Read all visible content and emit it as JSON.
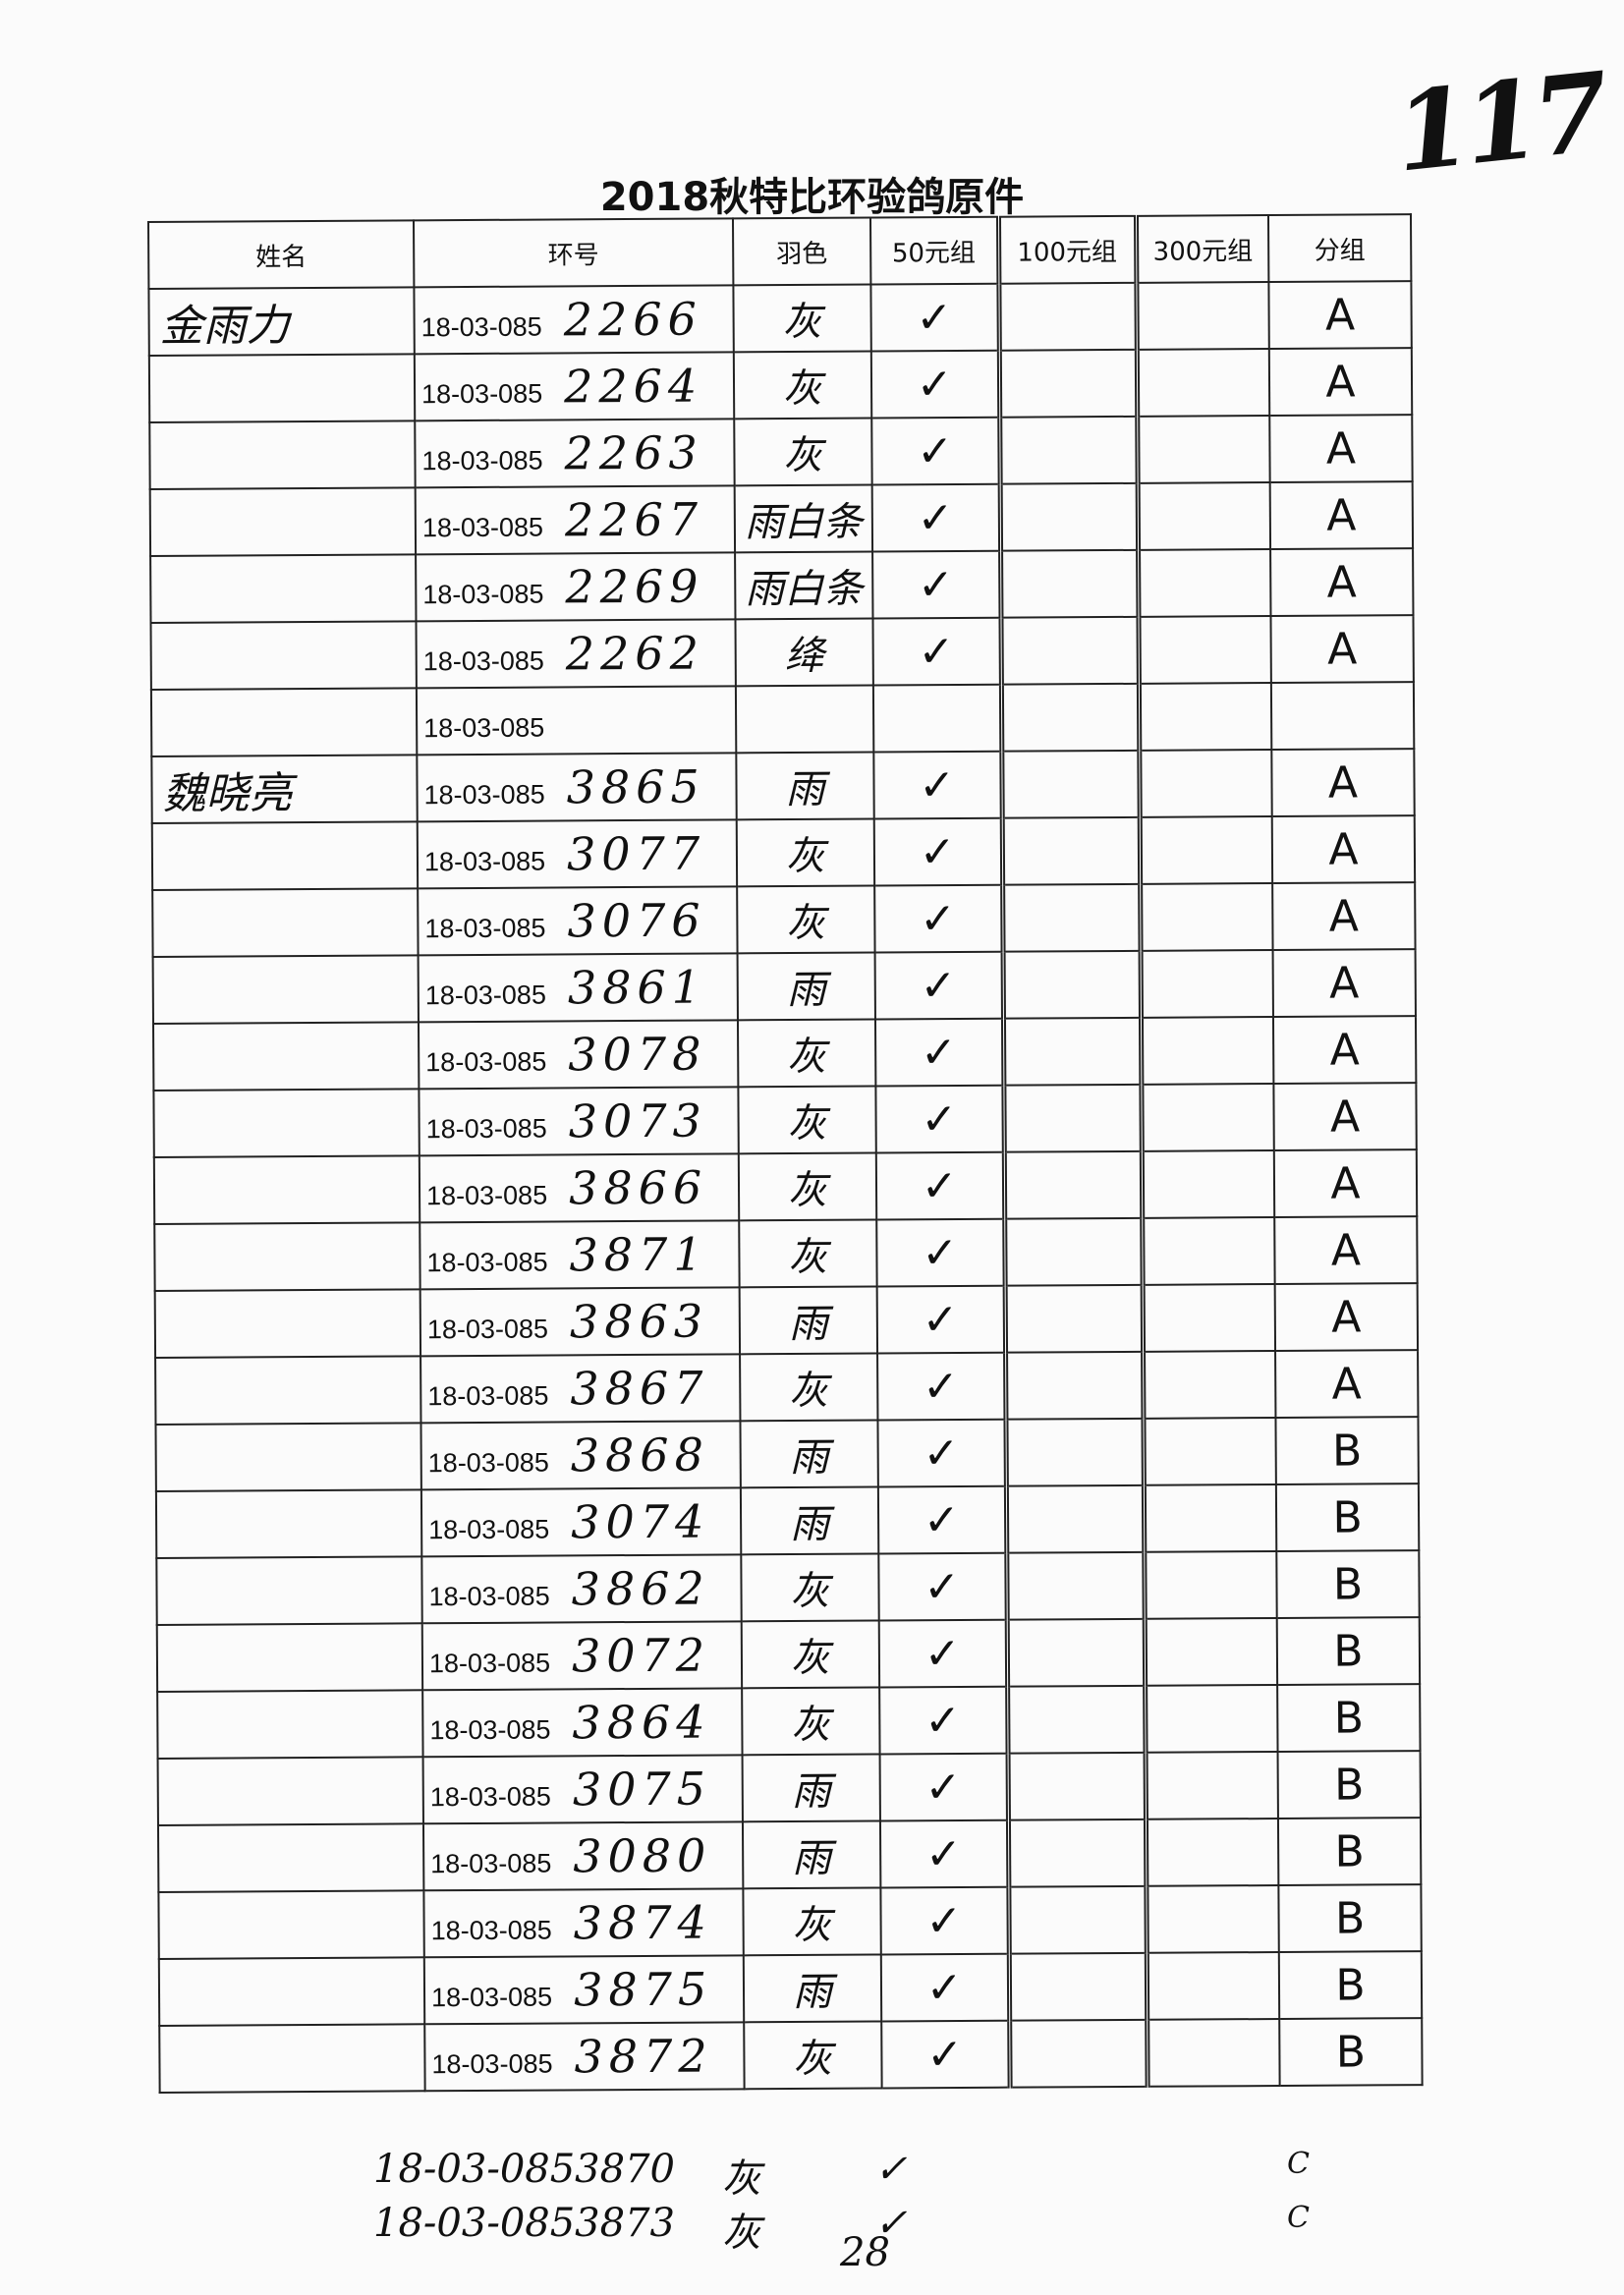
{
  "page_number": "117",
  "title": "2018秋特比环验鸽原件",
  "columns": [
    "姓名",
    "环号",
    "羽色",
    "50元组",
    "100元组",
    "300元组",
    "分组"
  ],
  "ring_prefix": "18-03-085",
  "rows": [
    {
      "name": "金雨力",
      "ring": "2266",
      "color": "灰",
      "g50": "✓",
      "g100": "",
      "g300": "",
      "group": "A"
    },
    {
      "name": "",
      "ring": "2264",
      "color": "灰",
      "g50": "✓",
      "g100": "",
      "g300": "",
      "group": "A"
    },
    {
      "name": "",
      "ring": "2263",
      "color": "灰",
      "g50": "✓",
      "g100": "",
      "g300": "",
      "group": "A"
    },
    {
      "name": "",
      "ring": "2267",
      "color": "雨白条",
      "g50": "✓",
      "g100": "",
      "g300": "",
      "group": "A"
    },
    {
      "name": "",
      "ring": "2269",
      "color": "雨白条",
      "g50": "✓",
      "g100": "",
      "g300": "",
      "group": "A"
    },
    {
      "name": "",
      "ring": "2262",
      "color": "绛",
      "g50": "✓",
      "g100": "",
      "g300": "",
      "group": "A"
    },
    {
      "name": "",
      "ring": "",
      "color": "",
      "g50": "",
      "g100": "",
      "g300": "",
      "group": ""
    },
    {
      "name": "魏晓亮",
      "ring": "3865",
      "color": "雨",
      "g50": "✓",
      "g100": "",
      "g300": "",
      "group": "A"
    },
    {
      "name": "",
      "ring": "3077",
      "color": "灰",
      "g50": "✓",
      "g100": "",
      "g300": "",
      "group": "A"
    },
    {
      "name": "",
      "ring": "3076",
      "color": "灰",
      "g50": "✓",
      "g100": "",
      "g300": "",
      "group": "A"
    },
    {
      "name": "",
      "ring": "3861",
      "color": "雨",
      "g50": "✓",
      "g100": "",
      "g300": "",
      "group": "A"
    },
    {
      "name": "",
      "ring": "3078",
      "color": "灰",
      "g50": "✓",
      "g100": "",
      "g300": "",
      "group": "A"
    },
    {
      "name": "",
      "ring": "3073",
      "color": "灰",
      "g50": "✓",
      "g100": "",
      "g300": "",
      "group": "A"
    },
    {
      "name": "",
      "ring": "3866",
      "color": "灰",
      "g50": "✓",
      "g100": "",
      "g300": "",
      "group": "A"
    },
    {
      "name": "",
      "ring": "3871",
      "color": "灰",
      "g50": "✓",
      "g100": "",
      "g300": "",
      "group": "A"
    },
    {
      "name": "",
      "ring": "3863",
      "color": "雨",
      "g50": "✓",
      "g100": "",
      "g300": "",
      "group": "A"
    },
    {
      "name": "",
      "ring": "3867",
      "color": "灰",
      "g50": "✓",
      "g100": "",
      "g300": "",
      "group": "A"
    },
    {
      "name": "",
      "ring": "3868",
      "color": "雨",
      "g50": "✓",
      "g100": "",
      "g300": "",
      "group": "B"
    },
    {
      "name": "",
      "ring": "3074",
      "color": "雨",
      "g50": "✓",
      "g100": "",
      "g300": "",
      "group": "B"
    },
    {
      "name": "",
      "ring": "3862",
      "color": "灰",
      "g50": "✓",
      "g100": "",
      "g300": "",
      "group": "B"
    },
    {
      "name": "",
      "ring": "3072",
      "color": "灰",
      "g50": "✓",
      "g100": "",
      "g300": "",
      "group": "B"
    },
    {
      "name": "",
      "ring": "3864",
      "color": "灰",
      "g50": "✓",
      "g100": "",
      "g300": "",
      "group": "B"
    },
    {
      "name": "",
      "ring": "3075",
      "color": "雨",
      "g50": "✓",
      "g100": "",
      "g300": "",
      "group": "B"
    },
    {
      "name": "",
      "ring": "3080",
      "color": "雨",
      "g50": "✓",
      "g100": "",
      "g300": "",
      "group": "B"
    },
    {
      "name": "",
      "ring": "3874",
      "color": "灰",
      "g50": "✓",
      "g100": "",
      "g300": "",
      "group": "B"
    },
    {
      "name": "",
      "ring": "3875",
      "color": "雨",
      "g50": "✓",
      "g100": "",
      "g300": "",
      "group": "B"
    },
    {
      "name": "",
      "ring": "3872",
      "color": "灰",
      "g50": "✓",
      "g100": "",
      "g300": "",
      "group": "B"
    }
  ],
  "extra_rows": [
    {
      "ring": "18-03-0853870",
      "color": "灰",
      "g50": "✓",
      "group": "C"
    },
    {
      "ring": "18-03-0853873",
      "color": "灰",
      "g50": "✓",
      "group": "C"
    }
  ],
  "total": "28"
}
